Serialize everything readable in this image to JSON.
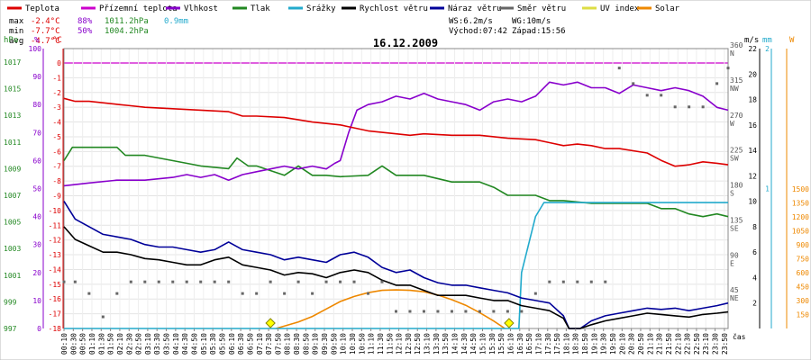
{
  "chart_data": {
    "type": "line",
    "title": "16.12.2009",
    "legend": [
      {
        "name": "Teplota",
        "color": "#dd0000"
      },
      {
        "name": "Přízemní teplota",
        "color": "#cc00cc"
      },
      {
        "name": "Vlhkost",
        "color": "#8800cc"
      },
      {
        "name": "Tlak",
        "color": "#228822"
      },
      {
        "name": "Srážky",
        "color": "#22aacc"
      },
      {
        "name": "Rychlost větru",
        "color": "#000000"
      },
      {
        "name": "Náraz větru",
        "color": "#000099"
      },
      {
        "name": "Směr větru",
        "color": "#666666"
      },
      {
        "name": "UV index",
        "color": "#dddd44"
      },
      {
        "name": "Solar",
        "color": "#ee8800"
      }
    ],
    "stats": {
      "max": {
        "label": "max",
        "temp": "-2.4°C",
        "hum": "88%",
        "press": "1011.2hPa",
        "rain": "0.9mm"
      },
      "min": {
        "label": "min",
        "temp": "-7.7°C",
        "hum": "50%",
        "press": "1004.2hPa"
      },
      "avg": {
        "label": "avg",
        "temp": "-4.7°C"
      },
      "ws": "WS:6.2m/s",
      "wg": "WG:10m/s",
      "sunrise": "Východ:07:42",
      "sunset": "Západ:15:56"
    },
    "axes": {
      "hpa": {
        "unit": "hPa",
        "ticks": [
          "1017",
          "1015",
          "1013",
          "1011",
          "1009",
          "1007",
          "1005",
          "1003",
          "1001",
          "999",
          "997"
        ]
      },
      "pct": {
        "unit": "%",
        "ticks": [
          "100",
          "90",
          "80",
          "70",
          "60",
          "50",
          "40",
          "30",
          "20",
          "10",
          "0"
        ]
      },
      "temp": {
        "unit": "°C",
        "ticks": [
          "0",
          "-1",
          "-2",
          "-3",
          "-4",
          "-5",
          "-6",
          "-7",
          "-8",
          "-9",
          "-10",
          "-11",
          "-12",
          "-13",
          "-14",
          "-15",
          "-16",
          "-17",
          "-18"
        ],
        "range": [
          -18,
          1
        ]
      },
      "dir": {
        "ticks": [
          "360",
          "315",
          "270",
          "225",
          "180",
          "135",
          "90",
          "45"
        ],
        "letters": [
          "N",
          "NW",
          "W",
          "SW",
          "S",
          "SE",
          "E",
          "NE"
        ]
      },
      "ms": {
        "unit": "m/s",
        "ticks": [
          "22",
          "20",
          "18",
          "16",
          "14",
          "12",
          "10",
          "8",
          "6",
          "4",
          "2"
        ]
      },
      "mm": {
        "unit": "mm",
        "ticks": [
          "2",
          "1"
        ]
      },
      "w": {
        "unit": "W",
        "ticks": [
          "1500",
          "1350",
          "1200",
          "1050",
          "900",
          "750",
          "600",
          "450",
          "300",
          "150"
        ]
      },
      "x_label": "čas",
      "x_ticks": [
        "00:10",
        "00:30",
        "00:50",
        "01:10",
        "01:30",
        "01:50",
        "02:10",
        "02:30",
        "02:50",
        "03:10",
        "03:30",
        "03:50",
        "04:10",
        "04:30",
        "04:50",
        "05:10",
        "05:30",
        "05:50",
        "06:10",
        "06:30",
        "06:50",
        "07:10",
        "07:30",
        "07:50",
        "08:10",
        "08:30",
        "08:50",
        "09:10",
        "09:30",
        "09:50",
        "10:10",
        "10:30",
        "10:50",
        "11:10",
        "11:30",
        "11:50",
        "12:10",
        "12:30",
        "12:50",
        "13:10",
        "13:30",
        "13:50",
        "14:10",
        "14:30",
        "14:50",
        "15:10",
        "15:30",
        "15:50",
        "16:10",
        "16:30",
        "16:50",
        "17:10",
        "17:30",
        "17:50",
        "18:10",
        "18:30",
        "18:50",
        "19:10",
        "19:30",
        "19:50",
        "20:10",
        "20:30",
        "20:50",
        "21:10",
        "21:30",
        "21:50",
        "22:10",
        "22:30",
        "22:50",
        "23:10",
        "23:30",
        "23:50"
      ]
    },
    "x_range_hours": [
      0.1,
      23.9
    ],
    "series": [
      {
        "key": "temp",
        "axis": "temp",
        "color": "#dd0000",
        "x": [
          0.1,
          0.5,
          1,
          2,
          2.5,
          3,
          4,
          5,
          6,
          6.5,
          7,
          8,
          9,
          9.5,
          10,
          10.5,
          11,
          12,
          12.5,
          13,
          14,
          15,
          15.5,
          16,
          17,
          17.5,
          18,
          18.5,
          19,
          19.5,
          20,
          21,
          21.5,
          22,
          22.5,
          23,
          23.5,
          23.9
        ],
        "y": [
          -2.4,
          -2.6,
          -2.6,
          -2.8,
          -2.9,
          -3.0,
          -3.1,
          -3.2,
          -3.3,
          -3.6,
          -3.6,
          -3.7,
          -4.0,
          -4.1,
          -4.2,
          -4.4,
          -4.6,
          -4.8,
          -4.9,
          -4.8,
          -4.9,
          -4.9,
          -5.0,
          -5.1,
          -5.2,
          -5.4,
          -5.6,
          -5.5,
          -5.6,
          -5.8,
          -5.8,
          -6.1,
          -6.6,
          -7.0,
          -6.9,
          -6.7,
          -6.8,
          -6.9
        ]
      },
      {
        "key": "hum",
        "axis": "pct",
        "color": "#8800cc",
        "x": [
          0.1,
          1,
          2,
          3,
          4,
          4.5,
          5,
          5.5,
          6,
          6.5,
          7,
          7.5,
          8,
          8.5,
          9,
          9.5,
          9.8,
          10,
          10.3,
          10.6,
          11,
          11.5,
          12,
          12.5,
          13,
          13.5,
          14,
          14.5,
          15,
          15.5,
          16,
          16.5,
          17,
          17.5,
          18,
          18.5,
          19,
          19.5,
          20,
          20.5,
          21,
          21.5,
          22,
          22.5,
          23,
          23.5,
          23.9
        ],
        "y": [
          51,
          52,
          53,
          53,
          54,
          55,
          54,
          55,
          53,
          55,
          56,
          57,
          58,
          57,
          58,
          57,
          59,
          60,
          70,
          78,
          80,
          81,
          83,
          82,
          84,
          82,
          81,
          80,
          78,
          81,
          82,
          81,
          83,
          88,
          87,
          88,
          86,
          86,
          84,
          87,
          86,
          85,
          86,
          85,
          83,
          79,
          78
        ]
      },
      {
        "key": "press",
        "axis": "hpa",
        "color": "#228822",
        "x": [
          0.1,
          0.4,
          1,
          2,
          2.3,
          3,
          4,
          5,
          6,
          6.3,
          6.7,
          7,
          8,
          8.5,
          9,
          9.5,
          10,
          11,
          11.5,
          12,
          13,
          14,
          15,
          15.5,
          16,
          17,
          17.5,
          18,
          19,
          20,
          21,
          21.5,
          22,
          22.5,
          23,
          23.5,
          23.9
        ],
        "y": [
          1009.6,
          1010.6,
          1010.6,
          1010.6,
          1010.0,
          1010.0,
          1009.6,
          1009.2,
          1009.0,
          1009.8,
          1009.2,
          1009.2,
          1008.5,
          1009.2,
          1008.5,
          1008.5,
          1008.4,
          1008.5,
          1009.2,
          1008.5,
          1008.5,
          1008.0,
          1008.0,
          1007.6,
          1007.0,
          1007.0,
          1006.6,
          1006.6,
          1006.4,
          1006.4,
          1006.4,
          1006.0,
          1006.0,
          1005.6,
          1005.4,
          1005.6,
          1005.4
        ]
      },
      {
        "key": "rain",
        "axis": "mm",
        "color": "#22aacc",
        "x": [
          0.1,
          16.4,
          16.5,
          17.0,
          17.3,
          23.9
        ],
        "y": [
          0,
          0,
          0.4,
          0.8,
          0.9,
          0.9
        ]
      },
      {
        "key": "wind",
        "axis": "ms",
        "color": "#000000",
        "x": [
          0.1,
          0.5,
          1,
          1.5,
          2,
          2.5,
          3,
          3.5,
          4,
          4.5,
          5,
          5.5,
          6,
          6.5,
          7,
          7.5,
          8,
          8.5,
          9,
          9.5,
          10,
          10.5,
          11,
          11.5,
          12,
          12.5,
          13,
          13.5,
          14,
          14.5,
          15,
          15.5,
          16,
          16.5,
          17,
          17.5,
          18,
          18.2,
          18.6,
          19,
          19.5,
          20,
          20.5,
          21,
          21.5,
          22,
          22.5,
          23,
          23.5,
          23.9
        ],
        "y": [
          8,
          7,
          6.5,
          6,
          6,
          5.8,
          5.5,
          5.4,
          5.2,
          5,
          5,
          5.4,
          5.6,
          5,
          4.8,
          4.6,
          4.2,
          4.4,
          4.3,
          4,
          4.4,
          4.6,
          4.4,
          3.8,
          3.4,
          3.4,
          3,
          2.6,
          2.6,
          2.6,
          2.4,
          2.2,
          2.2,
          1.8,
          1.6,
          1.4,
          0.8,
          0,
          0,
          0.3,
          0.6,
          0.8,
          1,
          1.2,
          1.1,
          1,
          0.9,
          1.1,
          1.2,
          1.3
        ]
      },
      {
        "key": "gust",
        "axis": "ms",
        "color": "#000099",
        "x": [
          0.1,
          0.5,
          1,
          1.5,
          2,
          2.5,
          3,
          3.5,
          4,
          4.5,
          5,
          5.5,
          6,
          6.5,
          7,
          7.5,
          8,
          8.5,
          9,
          9.5,
          10,
          10.5,
          11,
          11.5,
          12,
          12.5,
          13,
          13.5,
          14,
          14.5,
          15,
          15.5,
          16,
          16.5,
          17,
          17.5,
          18,
          18.2,
          18.6,
          19,
          19.5,
          20,
          20.5,
          21,
          21.5,
          22,
          22.5,
          23,
          23.5,
          23.9
        ],
        "y": [
          10,
          8.6,
          8,
          7.4,
          7.2,
          7,
          6.6,
          6.4,
          6.4,
          6.2,
          6,
          6.2,
          6.8,
          6.2,
          6,
          5.8,
          5.4,
          5.6,
          5.4,
          5.2,
          5.8,
          6,
          5.6,
          4.8,
          4.4,
          4.6,
          4,
          3.6,
          3.4,
          3.4,
          3.2,
          3,
          2.8,
          2.4,
          2.2,
          2,
          1,
          0,
          0,
          0.6,
          1,
          1.2,
          1.4,
          1.6,
          1.5,
          1.6,
          1.4,
          1.6,
          1.8,
          2
        ]
      },
      {
        "key": "solar",
        "axis": "w",
        "color": "#ee8800",
        "x": [
          7.7,
          8.5,
          9,
          9.5,
          10,
          10.5,
          11,
          11.5,
          12,
          12.5,
          13,
          13.5,
          14,
          14.5,
          15,
          15.5,
          15.9
        ],
        "y": [
          0,
          70,
          130,
          210,
          290,
          345,
          385,
          410,
          415,
          410,
          395,
          360,
          310,
          250,
          170,
          80,
          0
        ]
      }
    ],
    "wind_direction": {
      "axis": "dir",
      "x": [
        0.1,
        0.5,
        1,
        1.5,
        2,
        2.5,
        3,
        3.5,
        4,
        4.5,
        5,
        5.5,
        6,
        6.5,
        7,
        7.5,
        8,
        8.5,
        9,
        9.5,
        10,
        10.5,
        11,
        11.5,
        12,
        12.5,
        13,
        13.5,
        14,
        14.5,
        15,
        15.5,
        16,
        16.5,
        17,
        17.5,
        18,
        18.5,
        19,
        19.5,
        20,
        20.5,
        21,
        21.5,
        22,
        22.5,
        23,
        23.5,
        23.9
      ],
      "y": [
        60,
        60,
        45,
        15,
        45,
        60,
        60,
        60,
        60,
        60,
        60,
        60,
        60,
        45,
        45,
        60,
        45,
        60,
        45,
        60,
        60,
        60,
        45,
        60,
        22,
        22,
        22,
        22,
        22,
        22,
        22,
        22,
        22,
        22,
        45,
        60,
        60,
        60,
        60,
        60,
        335,
        315,
        300,
        300,
        285,
        285,
        285,
        315,
        335
      ]
    },
    "uv_markers": {
      "x": [
        7.5,
        16.05
      ],
      "y": [
        0,
        0
      ]
    }
  }
}
